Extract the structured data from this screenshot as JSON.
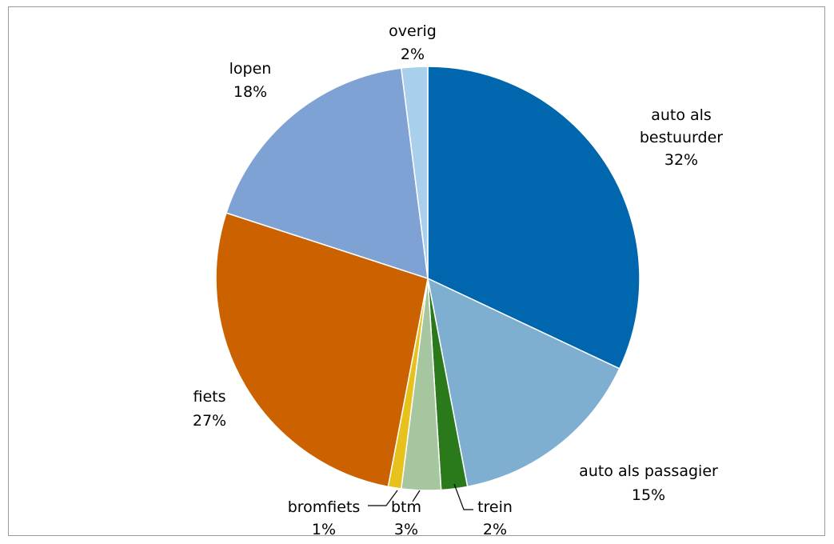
{
  "chart_data": {
    "type": "pie",
    "title": "",
    "start_angle_deg": 0,
    "direction": "clockwise",
    "legend": "none",
    "slices": [
      {
        "label": "auto als bestuurder",
        "value": 32,
        "display": "32%",
        "color": "#0066AE"
      },
      {
        "label": "auto als passagier",
        "value": 15,
        "display": "15%",
        "color": "#7FAFD0"
      },
      {
        "label": "trein",
        "value": 2,
        "display": "2%",
        "color": "#2A7A1C"
      },
      {
        "label": "btm",
        "value": 3,
        "display": "3%",
        "color": "#A6C6A0"
      },
      {
        "label": "bromfiets",
        "value": 1,
        "display": "1%",
        "color": "#E8C21C"
      },
      {
        "label": "fiets",
        "value": 27,
        "display": "27%",
        "color": "#CC6100"
      },
      {
        "label": "lopen",
        "value": 18,
        "display": "18%",
        "color": "#7FA2D4"
      },
      {
        "label": "overig",
        "value": 2,
        "display": "2%",
        "color": "#A8D0EC"
      }
    ]
  }
}
